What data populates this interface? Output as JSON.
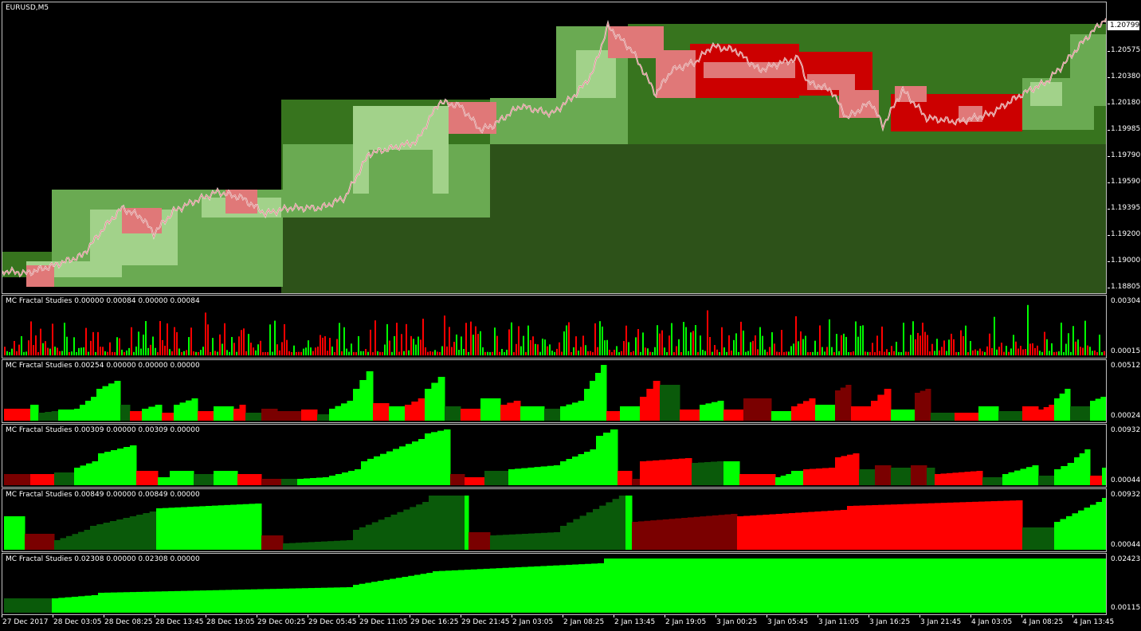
{
  "main_pane": {
    "title": "EURUSD,M5",
    "current_price": "1.20799",
    "price_ticks": [
      "1.20575",
      "1.20380",
      "1.20180",
      "1.19985",
      "1.19790",
      "1.19590",
      "1.19395",
      "1.19200",
      "1.19000",
      "1.18805"
    ]
  },
  "indicators": [
    {
      "label": "MC Fractal Studies 0.00000 0.00084 0.00000 0.00084",
      "axis_top": "0.00304",
      "axis_bottom": "0.00015"
    },
    {
      "label": "MC Fractal Studies 0.00254 0.00000 0.00000 0.00000",
      "axis_top": "0.00512",
      "axis_bottom": "0.00024"
    },
    {
      "label": "MC Fractal Studies 0.00309 0.00000 0.00309 0.00000",
      "axis_top": "0.00932",
      "axis_bottom": "0.00044"
    },
    {
      "label": "MC Fractal Studies 0.00849 0.00000 0.00849 0.00000",
      "axis_top": "0.00932",
      "axis_bottom": "0.00044"
    },
    {
      "label": "MC Fractal Studies 0.02308 0.00000 0.02308 0.00000",
      "axis_top": "0.02423",
      "axis_bottom": "0.00115"
    }
  ],
  "time_axis": [
    "27 Dec 2017",
    "28 Dec 03:05",
    "28 Dec 08:25",
    "28 Dec 13:45",
    "28 Dec 19:05",
    "29 Dec 00:25",
    "29 Dec 05:45",
    "29 Dec 11:05",
    "29 Dec 16:25",
    "29 Dec 21:45",
    "2 Jan 03:05",
    "2 Jan 08:25",
    "2 Jan 13:45",
    "2 Jan 19:05",
    "3 Jan 00:25",
    "3 Jan 05:45",
    "3 Jan 11:05",
    "3 Jan 16:25",
    "3 Jan 21:45",
    "4 Jan 03:05",
    "4 Jan 08:25",
    "4 Jan 13:45"
  ],
  "colors": {
    "bull_bright": "#00ff00",
    "bull_dark": "#0a5a0a",
    "bear_bright": "#ff0000",
    "bear_dark": "#7a0000",
    "box_green_1": "#2d5219",
    "box_green_2": "#37741e",
    "box_green_3": "#6aaa52",
    "box_green_4": "#a2d28a",
    "box_red_1": "#cc0000",
    "box_red_2": "#e07878"
  }
}
